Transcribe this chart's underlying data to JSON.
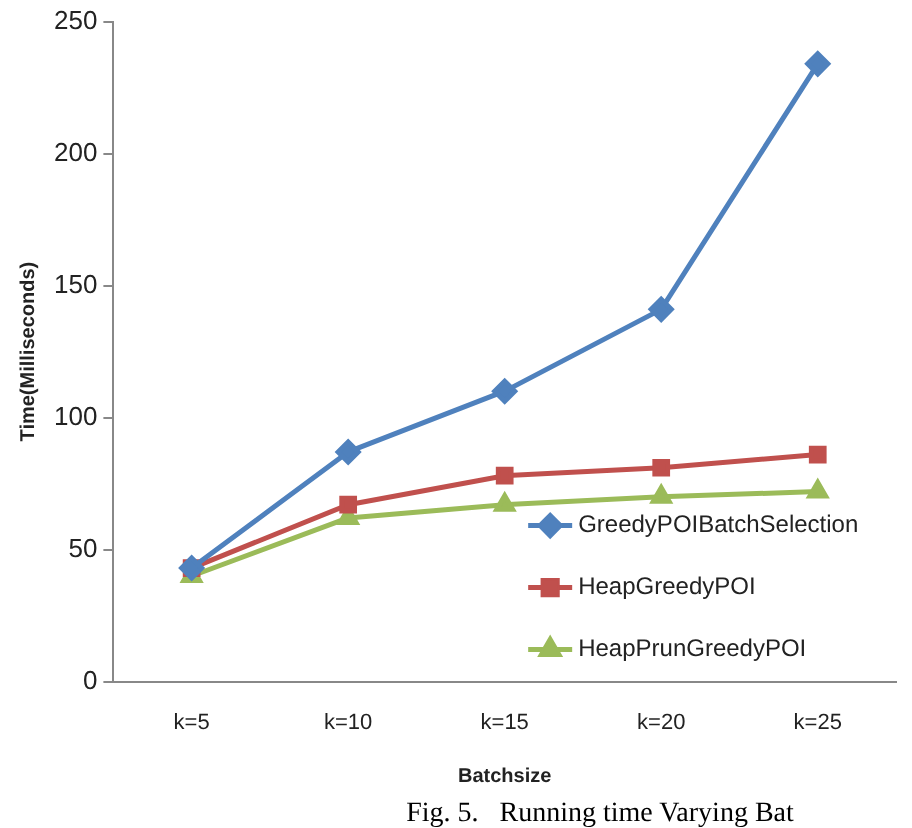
{
  "chart_data": {
    "type": "line",
    "xlabel": "Batchsize",
    "ylabel": "Time(Milliseconds)",
    "categories": [
      "k=5",
      "k=10",
      "k=15",
      "k=20",
      "k=25"
    ],
    "series": [
      {
        "name": "GreedyPOIBatchSelection",
        "color": "#4f81bd",
        "marker": "diamond",
        "values": [
          43,
          87,
          110,
          141,
          234
        ]
      },
      {
        "name": "HeapGreedyPOI",
        "color": "#c0504d",
        "marker": "square",
        "values": [
          43,
          67,
          78,
          81,
          86
        ]
      },
      {
        "name": "HeapPrunGreedyPOI",
        "color": "#9bbb59",
        "marker": "triangle",
        "values": [
          40,
          62,
          67,
          70,
          72
        ]
      }
    ],
    "ylim": [
      0,
      250
    ],
    "yticks": [
      0,
      50,
      100,
      150,
      200,
      250
    ],
    "grid": false,
    "legend": "bottom right",
    "line_style": "solid",
    "annotations": [
      "Fig. 5.   Running time Varying Bat"
    ]
  }
}
